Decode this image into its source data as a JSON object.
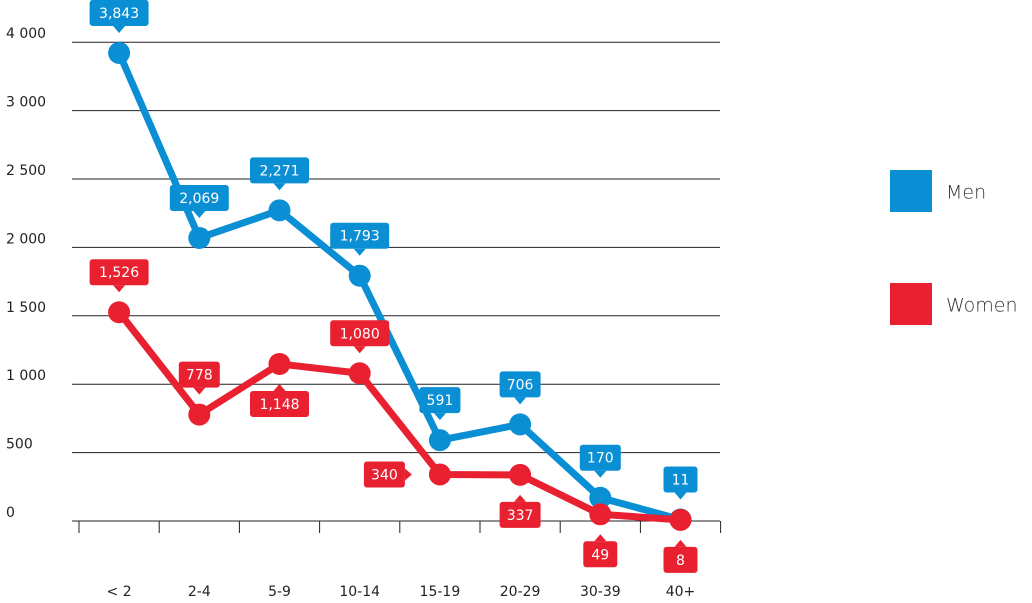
{
  "chart_data": {
    "type": "line",
    "categories": [
      "< 2",
      "2-4",
      "5-9",
      "10-14",
      "15-19",
      "20-29",
      "30-39",
      "40+"
    ],
    "series": [
      {
        "name": "Men",
        "color": "#0a8fd4",
        "values": [
          3843,
          2069,
          2271,
          1793,
          591,
          706,
          170,
          11
        ],
        "value_labels": [
          "3,843",
          "2,069",
          "2,271",
          "1,793",
          "591",
          "706",
          "170",
          "11"
        ]
      },
      {
        "name": "Women",
        "color": "#e8202f",
        "values": [
          1526,
          778,
          1148,
          1080,
          340,
          337,
          49,
          8
        ],
        "value_labels": [
          "1,526",
          "778",
          "1,148",
          "1,080",
          "340",
          "337",
          "49",
          "8"
        ]
      }
    ],
    "ylim": [
      0,
      4000
    ],
    "yticks": [
      0,
      500,
      {
        "value": 1000,
        "label": "1 000"
      },
      {
        "value": 1500,
        "label": "1 500"
      },
      {
        "value": 2000,
        "label": "2 000"
      },
      {
        "value": 2500,
        "label": "2 500"
      },
      {
        "value": 3000,
        "label": "3 000"
      },
      {
        "value": 4000,
        "label": "4 000"
      }
    ],
    "grid": true
  }
}
